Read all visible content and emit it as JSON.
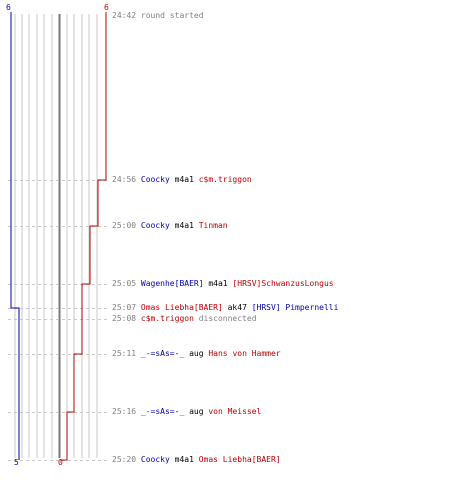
{
  "scores": {
    "blue_top": "6",
    "red_top": "6",
    "blue_bottom": "5",
    "red_bottom": "0"
  },
  "colors": {
    "blue": "#0000aa",
    "red": "#bb0000",
    "grid": "#c8c8c8",
    "dashed": "#c8c8c8",
    "center": "#777777",
    "time_text": "#808080"
  },
  "events": [
    {
      "time": "24:42",
      "parts": [
        {
          "text": "round started",
          "style": "msg"
        }
      ]
    },
    {
      "time": "24:56",
      "parts": [
        {
          "text": "Coocky",
          "style": "blue"
        },
        {
          "text": " m4a1 ",
          "style": "black"
        },
        {
          "text": "c$m.triggon",
          "style": "red"
        }
      ]
    },
    {
      "time": "25:00",
      "parts": [
        {
          "text": "Coocky",
          "style": "blue"
        },
        {
          "text": " m4a1 ",
          "style": "black"
        },
        {
          "text": "Tinman",
          "style": "red"
        }
      ]
    },
    {
      "time": "25:05",
      "parts": [
        {
          "text": "Wagenhe[BAER]",
          "style": "blue"
        },
        {
          "text": " m4a1 ",
          "style": "black"
        },
        {
          "text": "[HRSV]SchwanzusLongus",
          "style": "red"
        }
      ]
    },
    {
      "time": "25:07",
      "parts": [
        {
          "text": "Omas Liebha[BAER]",
          "style": "red"
        },
        {
          "text": " ak47 ",
          "style": "black"
        },
        {
          "text": "[HRSV] Pimpernelli",
          "style": "blue"
        }
      ]
    },
    {
      "time": "25:08",
      "parts": [
        {
          "text": "c$m.triggon",
          "style": "red"
        },
        {
          "text": " disconnected",
          "style": "msg"
        }
      ]
    },
    {
      "time": "25:11",
      "parts": [
        {
          "text": "_-=sAs=-_",
          "style": "blue"
        },
        {
          "text": " aug ",
          "style": "black"
        },
        {
          "text": "Hans von Hammer",
          "style": "red"
        }
      ]
    },
    {
      "time": "25:16",
      "parts": [
        {
          "text": "_-=sAs=-_",
          "style": "blue"
        },
        {
          "text": " aug ",
          "style": "black"
        },
        {
          "text": "von Meissel",
          "style": "red"
        }
      ]
    },
    {
      "time": "25:20",
      "parts": [
        {
          "text": "Coocky",
          "style": "blue"
        },
        {
          "text": " m4a1 ",
          "style": "black"
        },
        {
          "text": "Omas Liebha[BAER]",
          "style": "red"
        }
      ]
    }
  ]
}
